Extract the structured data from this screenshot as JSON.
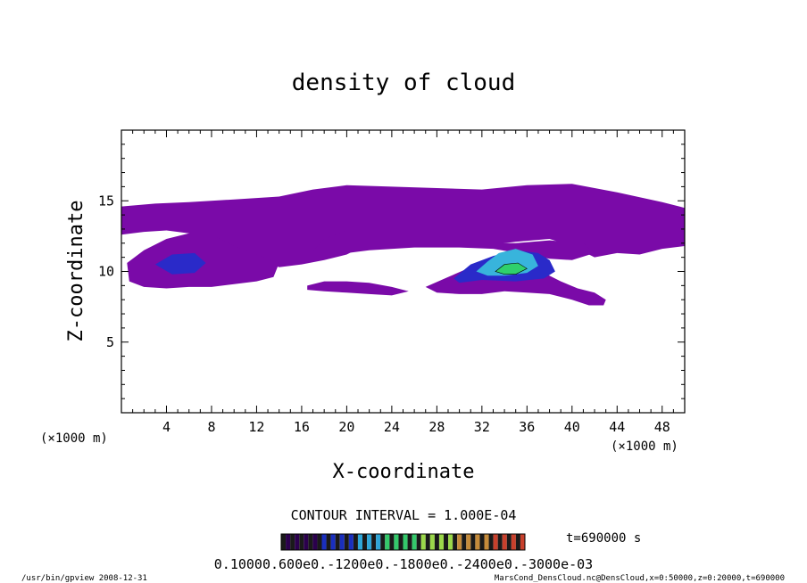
{
  "chart_data": {
    "type": "heatmap",
    "title": "density of cloud",
    "xlabel": "X-coordinate",
    "ylabel": "Z-coordinate",
    "x_unit": "(×1000 m)",
    "y_unit": "(×1000 m)",
    "xlim": [
      0,
      50
    ],
    "ylim": [
      0,
      20
    ],
    "x_ticks": [
      "4",
      "8",
      "12",
      "16",
      "20",
      "24",
      "28",
      "32",
      "36",
      "40",
      "44",
      "48"
    ],
    "y_ticks": [
      "5",
      "10",
      "15"
    ],
    "contour_interval_text": "CONTOUR INTERVAL = 1.000E-04",
    "time_label": "t=690000 s",
    "colorbar_text": "0.10000.600e0.-1200e0.-1800e0.-2400e0.-3000e-03",
    "colorbar_levels": [
      0.0001,
      0.0006,
      0.0012,
      0.0018,
      0.0024,
      0.003
    ],
    "colorbar_colors": [
      "#2b004d",
      "#1a2fbf",
      "#2fa6d8",
      "#34c96b",
      "#9bd84a",
      "#c58b3a",
      "#c8402c"
    ],
    "cloud_regions": [
      {
        "level": "low",
        "color": "#7a0aa8",
        "polygon": [
          [
            0,
            14.6
          ],
          [
            3,
            14.8
          ],
          [
            6,
            14.9
          ],
          [
            10,
            15.1
          ],
          [
            14,
            15.3
          ],
          [
            17,
            15.8
          ],
          [
            20,
            16.1
          ],
          [
            24,
            16.0
          ],
          [
            28,
            15.9
          ],
          [
            32,
            15.8
          ],
          [
            36,
            16.1
          ],
          [
            40,
            16.2
          ],
          [
            44,
            15.6
          ],
          [
            48,
            14.9
          ],
          [
            50,
            14.5
          ],
          [
            50,
            11.8
          ],
          [
            48,
            11.6
          ],
          [
            46,
            11.2
          ],
          [
            44,
            11.3
          ],
          [
            42,
            11.0
          ],
          [
            40,
            11.8
          ],
          [
            38,
            12.3
          ],
          [
            35,
            12.1
          ],
          [
            33,
            11.9
          ],
          [
            31,
            12.0
          ],
          [
            29,
            11.8
          ],
          [
            27,
            12.3
          ],
          [
            24,
            12.5
          ],
          [
            22,
            12.0
          ],
          [
            20,
            11.2
          ],
          [
            18,
            10.8
          ],
          [
            16,
            10.5
          ],
          [
            14,
            10.3
          ],
          [
            12,
            11.0
          ],
          [
            10,
            11.5
          ],
          [
            9,
            11.9
          ],
          [
            8,
            12.3
          ],
          [
            6,
            12.7
          ],
          [
            4,
            12.9
          ],
          [
            2,
            12.8
          ],
          [
            0,
            12.6
          ]
        ]
      },
      {
        "level": "low",
        "color": "#7a0aa8",
        "polygon": [
          [
            0.5,
            10.6
          ],
          [
            2,
            11.5
          ],
          [
            4,
            12.3
          ],
          [
            6,
            12.7
          ],
          [
            8,
            12.6
          ],
          [
            10,
            11.8
          ],
          [
            12,
            11.2
          ],
          [
            14,
            10.6
          ],
          [
            13.5,
            9.6
          ],
          [
            12,
            9.3
          ],
          [
            10,
            9.1
          ],
          [
            8,
            8.9
          ],
          [
            6,
            8.9
          ],
          [
            4,
            8.8
          ],
          [
            2,
            8.9
          ],
          [
            0.7,
            9.3
          ]
        ]
      },
      {
        "level": "low",
        "color": "#7a0aa8",
        "polygon": [
          [
            17,
            11.4
          ],
          [
            18,
            12.3
          ],
          [
            20,
            12.9
          ],
          [
            23,
            13.1
          ],
          [
            26,
            12.9
          ],
          [
            28,
            12.5
          ],
          [
            30,
            12.2
          ],
          [
            32,
            12.0
          ],
          [
            35,
            12.0
          ],
          [
            38,
            12.2
          ],
          [
            41,
            12.0
          ],
          [
            42,
            11.3
          ],
          [
            40,
            10.8
          ],
          [
            38,
            10.9
          ],
          [
            36,
            11.2
          ],
          [
            33,
            11.6
          ],
          [
            30,
            11.7
          ],
          [
            26,
            11.7
          ],
          [
            22,
            11.5
          ],
          [
            19,
            11.2
          ]
        ]
      },
      {
        "level": "low",
        "color": "#7a0aa8",
        "polygon": [
          [
            16.5,
            9.0
          ],
          [
            18,
            9.3
          ],
          [
            20,
            9.3
          ],
          [
            22,
            9.2
          ],
          [
            24,
            8.9
          ],
          [
            25.5,
            8.6
          ],
          [
            24,
            8.3
          ],
          [
            22,
            8.4
          ],
          [
            20,
            8.5
          ],
          [
            18,
            8.6
          ],
          [
            16.5,
            8.7
          ]
        ]
      },
      {
        "level": "low",
        "color": "#7a0aa8",
        "polygon": [
          [
            27,
            8.9
          ],
          [
            29,
            9.6
          ],
          [
            31,
            10.3
          ],
          [
            33,
            10.6
          ],
          [
            35,
            10.5
          ],
          [
            37,
            10.1
          ],
          [
            39,
            9.3
          ],
          [
            40.5,
            8.8
          ],
          [
            42,
            8.5
          ],
          [
            43,
            8.0
          ],
          [
            42.8,
            7.6
          ],
          [
            41.5,
            7.6
          ],
          [
            40,
            8.0
          ],
          [
            38,
            8.4
          ],
          [
            36,
            8.5
          ],
          [
            34,
            8.6
          ],
          [
            32,
            8.4
          ],
          [
            30,
            8.4
          ],
          [
            28,
            8.5
          ]
        ]
      },
      {
        "level": "mid",
        "color": "#2a2ac9",
        "polygon": [
          [
            3,
            10.5
          ],
          [
            4.5,
            11.2
          ],
          [
            6.5,
            11.3
          ],
          [
            7.5,
            10.6
          ],
          [
            6.5,
            9.9
          ],
          [
            4.5,
            9.8
          ]
        ]
      },
      {
        "level": "mid",
        "color": "#2a2ac9",
        "polygon": [
          [
            29.5,
            9.5
          ],
          [
            31,
            10.5
          ],
          [
            33,
            11.1
          ],
          [
            35,
            11.5
          ],
          [
            37,
            11.3
          ],
          [
            38,
            10.8
          ],
          [
            38.5,
            10.0
          ],
          [
            37.5,
            9.5
          ],
          [
            35,
            9.3
          ],
          [
            32,
            9.4
          ],
          [
            30,
            9.2
          ]
        ]
      },
      {
        "level": "high",
        "color": "#38b4dc",
        "polygon": [
          [
            31.5,
            10.0
          ],
          [
            32.5,
            10.7
          ],
          [
            33.5,
            11.3
          ],
          [
            35,
            11.6
          ],
          [
            36.5,
            11.2
          ],
          [
            37,
            10.4
          ],
          [
            36,
            9.9
          ],
          [
            34,
            9.7
          ],
          [
            32.5,
            9.7
          ]
        ]
      },
      {
        "level": "top",
        "color": "#2fd06c",
        "polygon": [
          [
            33.2,
            10.0
          ],
          [
            34,
            10.5
          ],
          [
            35.2,
            10.6
          ],
          [
            36,
            10.2
          ],
          [
            35,
            9.8
          ],
          [
            34,
            9.8
          ]
        ]
      }
    ],
    "footer_left": "/usr/bin/gpview  2008-12-31",
    "footer_right": "MarsCond_DensCloud.nc@DensCloud,x=0:50000,z=0:20000,t=690000"
  }
}
